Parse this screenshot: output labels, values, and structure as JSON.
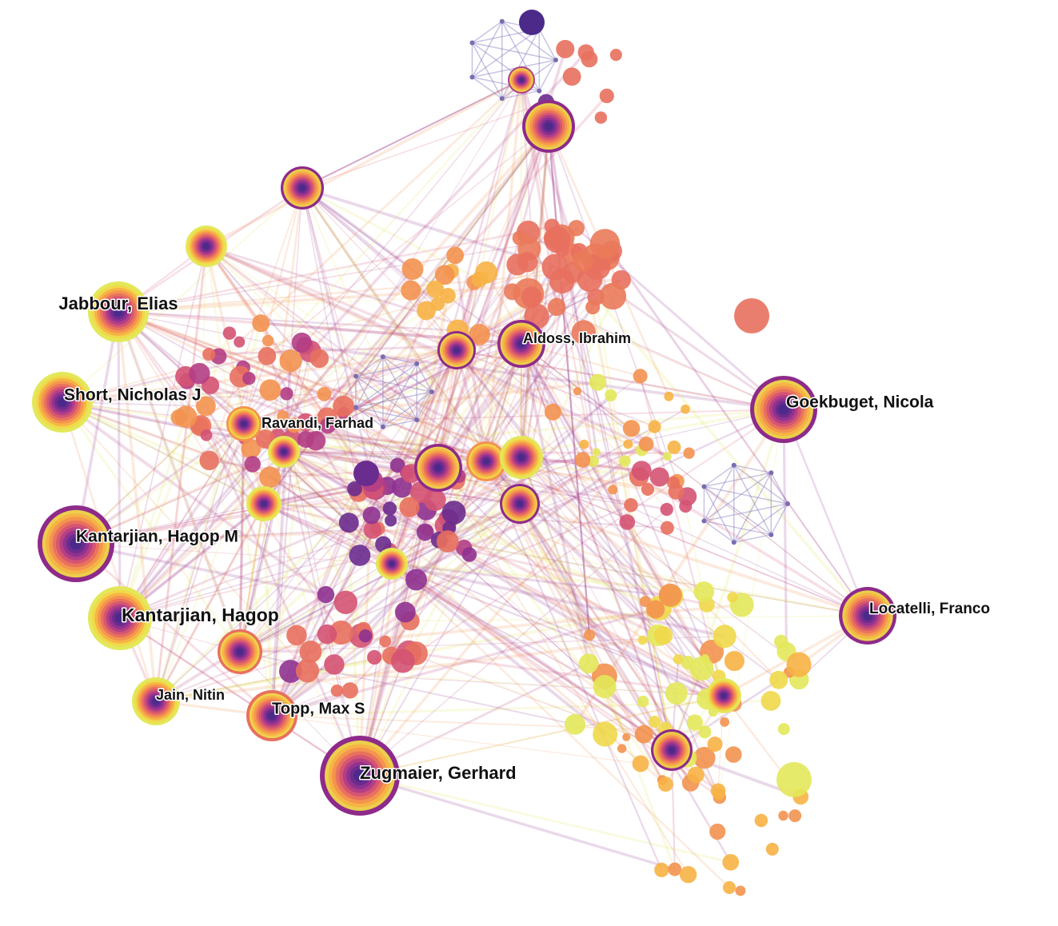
{
  "nodes": [
    {
      "label": "Jabbour, Elias"
    },
    {
      "label": "Short, Nicholas J"
    },
    {
      "label": "Ravandi, Farhad"
    },
    {
      "label": "Kantarjian, Hagop M"
    },
    {
      "label": "Kantarjian, Hagop"
    },
    {
      "label": "Jain, Nitin"
    },
    {
      "label": "Topp, Max S"
    },
    {
      "label": "Zugmaier, Gerhard"
    },
    {
      "label": "Aldoss, Ibrahim"
    },
    {
      "label": "Goekbuget, Nicola"
    },
    {
      "label": "Locatelli, Franco"
    }
  ]
}
